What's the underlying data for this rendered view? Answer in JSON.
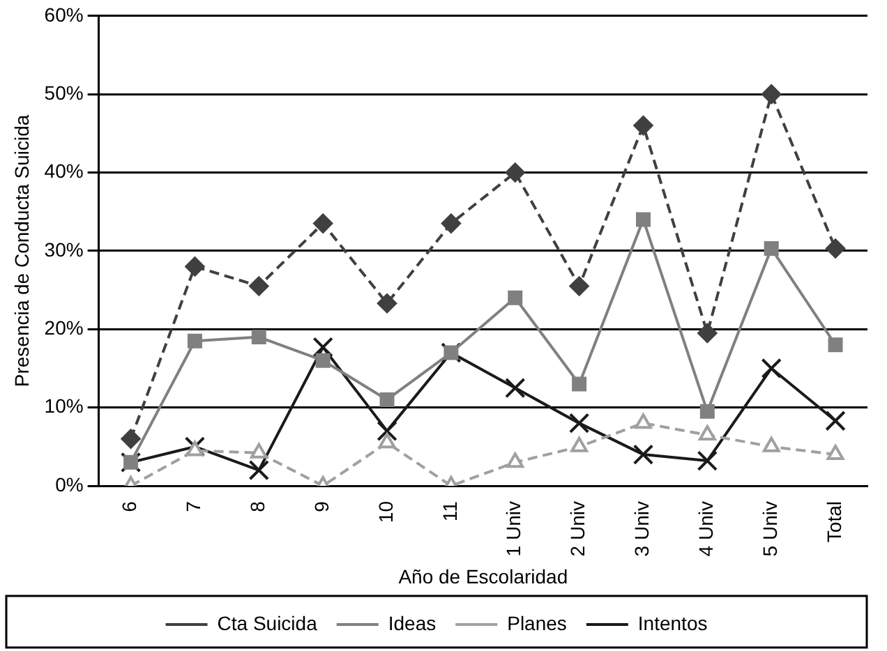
{
  "chart_data": {
    "type": "line",
    "xlabel": "Año de Escolaridad",
    "ylabel": "Presencia de Conducta Suicida",
    "categories": [
      "6",
      "7",
      "8",
      "9",
      "10",
      "11",
      "1 Univ",
      "2 Univ",
      "3 Univ",
      "4 Univ",
      "5 Univ",
      "Total"
    ],
    "series": [
      {
        "name": "Cta Suicida",
        "color": "#404040",
        "marker": "diamond",
        "line_style": "dashed",
        "values": [
          6,
          28,
          25.5,
          33.5,
          23.3,
          33.5,
          40,
          25.5,
          46,
          19.5,
          50,
          30.3
        ]
      },
      {
        "name": "Ideas",
        "color": "#808080",
        "marker": "square",
        "line_style": "solid",
        "values": [
          3,
          18.5,
          19,
          16,
          11,
          17,
          24,
          13,
          34,
          9.5,
          30.3,
          18
        ]
      },
      {
        "name": "Planes",
        "color": "#a0a0a0",
        "marker": "triangle",
        "line_style": "dashed",
        "values": [
          0,
          4.5,
          4.2,
          0,
          5.5,
          0,
          3,
          5,
          8,
          6.5,
          5,
          4
        ]
      },
      {
        "name": "Intentos",
        "color": "#1a1a1a",
        "marker": "cross",
        "line_style": "solid",
        "values": [
          3,
          5,
          2,
          17.7,
          7,
          17,
          12.5,
          8,
          4,
          3.2,
          15,
          8.3
        ]
      }
    ],
    "ylim": [
      0,
      60
    ],
    "yticks": [
      {
        "value": 0,
        "label": "0%"
      },
      {
        "value": 10,
        "label": "10%"
      },
      {
        "value": 20,
        "label": "20%"
      },
      {
        "value": 30,
        "label": "30%"
      },
      {
        "value": 40,
        "label": "40%"
      },
      {
        "value": 50,
        "label": "50%"
      },
      {
        "value": 60,
        "label": "60%"
      }
    ],
    "grid": "y",
    "legend": "bottom"
  }
}
